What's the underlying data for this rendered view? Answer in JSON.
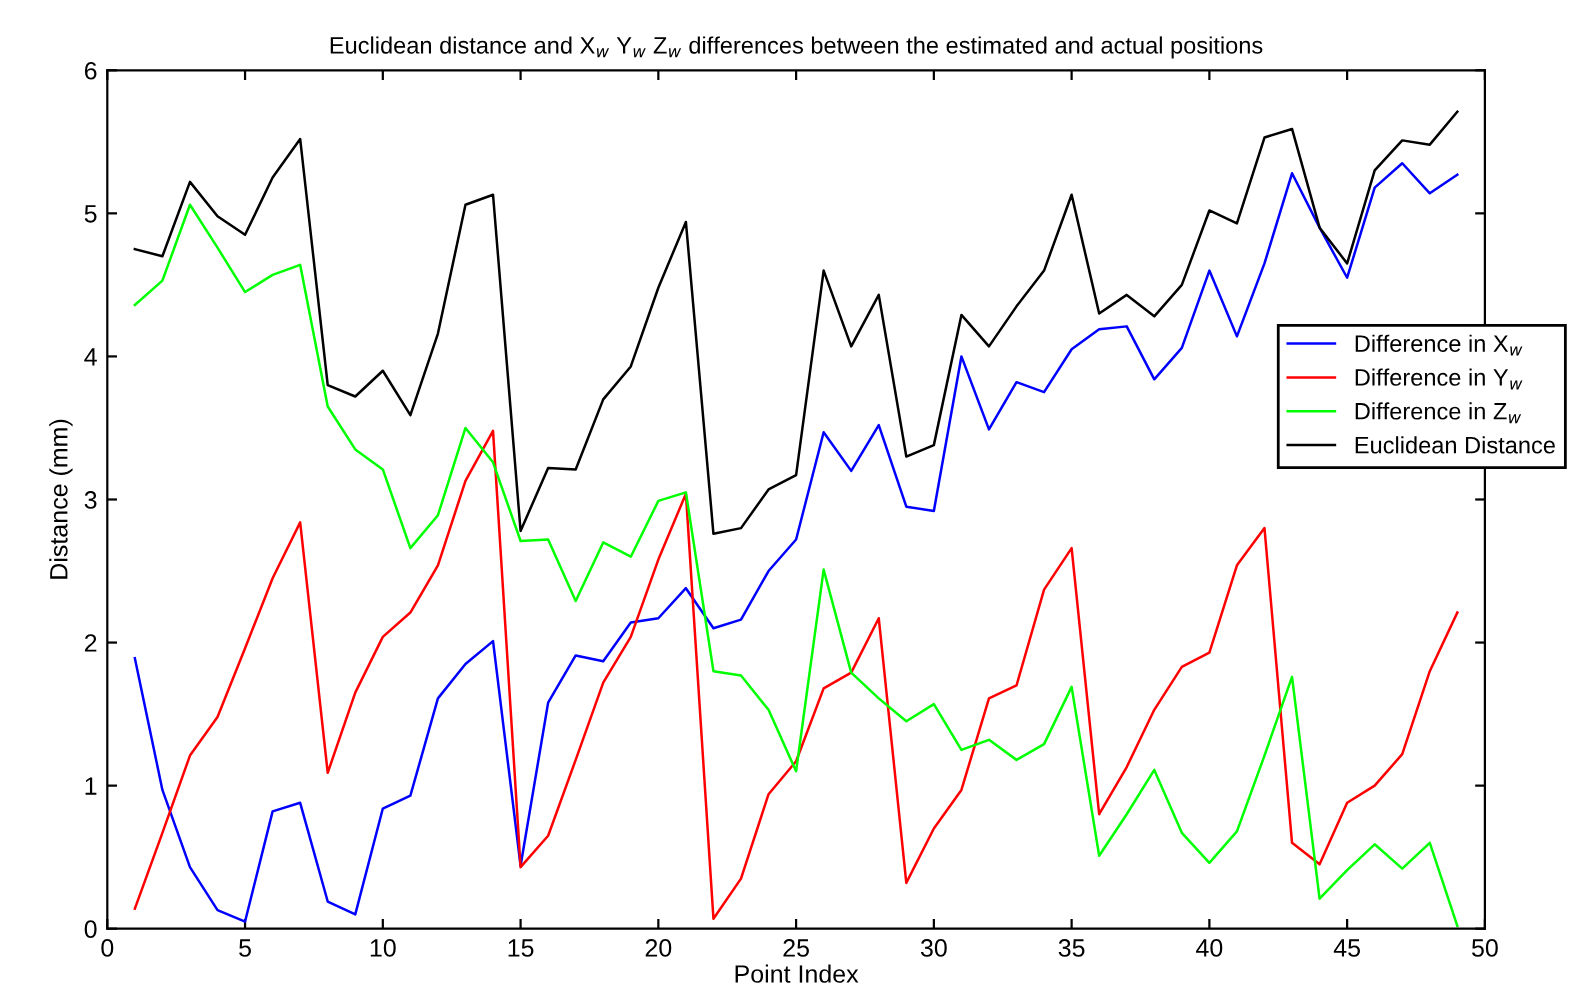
{
  "chart_data": {
    "type": "line",
    "title": "Euclidean distance and X$_{w}$ Y$_{w}$ Z$_{w}$ differences between the estimated and actual positions",
    "xlabel": "Point Index",
    "ylabel": "Distance (mm)",
    "x": [
      1,
      2,
      3,
      4,
      5,
      6,
      7,
      8,
      9,
      10,
      11,
      12,
      13,
      14,
      15,
      16,
      17,
      18,
      19,
      20,
      21,
      22,
      23,
      24,
      25,
      26,
      27,
      28,
      29,
      30,
      31,
      32,
      33,
      34,
      35,
      36,
      37,
      38,
      39,
      40,
      41,
      42,
      43,
      44,
      45,
      46,
      47,
      48,
      49
    ],
    "xlim": [
      0,
      50
    ],
    "xticks": [
      0,
      5,
      10,
      15,
      20,
      25,
      30,
      35,
      40,
      45,
      50
    ],
    "ylim": [
      0,
      6
    ],
    "yticks": [
      0,
      1,
      2,
      3,
      4,
      5,
      6
    ],
    "grid": false,
    "legend": "right",
    "marker": "none",
    "line_style": "solid",
    "series": [
      {
        "name": "Difference in X$_{w}$",
        "color": "#0000ff",
        "values": [
          1.89,
          0.97,
          0.43,
          0.13,
          0.05,
          0.82,
          0.88,
          0.19,
          0.1,
          0.84,
          0.93,
          1.61,
          1.85,
          2.01,
          0.44,
          1.58,
          1.91,
          1.87,
          2.14,
          2.17,
          2.38,
          2.1,
          2.16,
          2.5,
          2.72,
          3.47,
          3.2,
          3.52,
          2.95,
          2.92,
          4.0,
          3.49,
          3.82,
          3.75,
          4.05,
          4.19,
          4.21,
          3.84,
          4.06,
          4.6,
          4.14,
          4.65,
          5.28,
          4.9,
          4.55,
          5.18,
          5.35,
          5.14,
          5.27
        ]
      },
      {
        "name": "Difference in Y$_{w}$",
        "color": "#ff0000",
        "values": [
          0.14,
          0.67,
          1.21,
          1.48,
          1.96,
          2.45,
          2.84,
          1.09,
          1.65,
          2.04,
          2.21,
          2.54,
          3.13,
          3.48,
          0.43,
          0.65,
          1.18,
          1.72,
          2.04,
          2.58,
          3.04,
          0.07,
          0.35,
          0.94,
          1.17,
          1.68,
          1.79,
          2.17,
          0.32,
          0.7,
          0.97,
          1.61,
          1.7,
          2.37,
          2.66,
          0.8,
          1.13,
          1.53,
          1.83,
          1.93,
          2.54,
          2.8,
          0.6,
          0.45,
          0.88,
          1.0,
          1.22,
          1.8,
          2.21
        ]
      },
      {
        "name": "Difference in Z$_{w}$",
        "color": "#00ff00",
        "values": [
          4.36,
          4.53,
          5.06,
          4.76,
          4.45,
          4.57,
          4.64,
          3.65,
          3.35,
          3.21,
          2.66,
          2.89,
          3.5,
          3.26,
          2.71,
          2.72,
          2.29,
          2.7,
          2.6,
          2.99,
          3.05,
          1.8,
          1.77,
          1.53,
          1.1,
          2.51,
          1.79,
          1.61,
          1.45,
          1.57,
          1.25,
          1.32,
          1.18,
          1.29,
          1.69,
          0.51,
          0.8,
          1.11,
          0.67,
          0.46,
          0.68,
          1.21,
          1.76,
          0.21,
          0.41,
          0.59,
          0.42,
          0.6,
          0.02
        ]
      },
      {
        "name": "Euclidean Distance",
        "color": "#000000",
        "values": [
          4.75,
          4.7,
          5.22,
          4.98,
          4.85,
          5.25,
          5.52,
          3.8,
          3.72,
          3.9,
          3.59,
          4.16,
          5.06,
          5.13,
          2.78,
          3.22,
          3.21,
          3.7,
          3.93,
          4.48,
          4.94,
          2.76,
          2.8,
          3.07,
          3.17,
          4.6,
          4.07,
          4.43,
          3.3,
          3.38,
          4.29,
          4.07,
          4.35,
          4.6,
          5.13,
          4.3,
          4.43,
          4.28,
          4.5,
          5.02,
          4.93,
          5.53,
          5.59,
          4.9,
          4.65,
          5.3,
          5.51,
          5.48,
          5.71
        ]
      }
    ]
  }
}
